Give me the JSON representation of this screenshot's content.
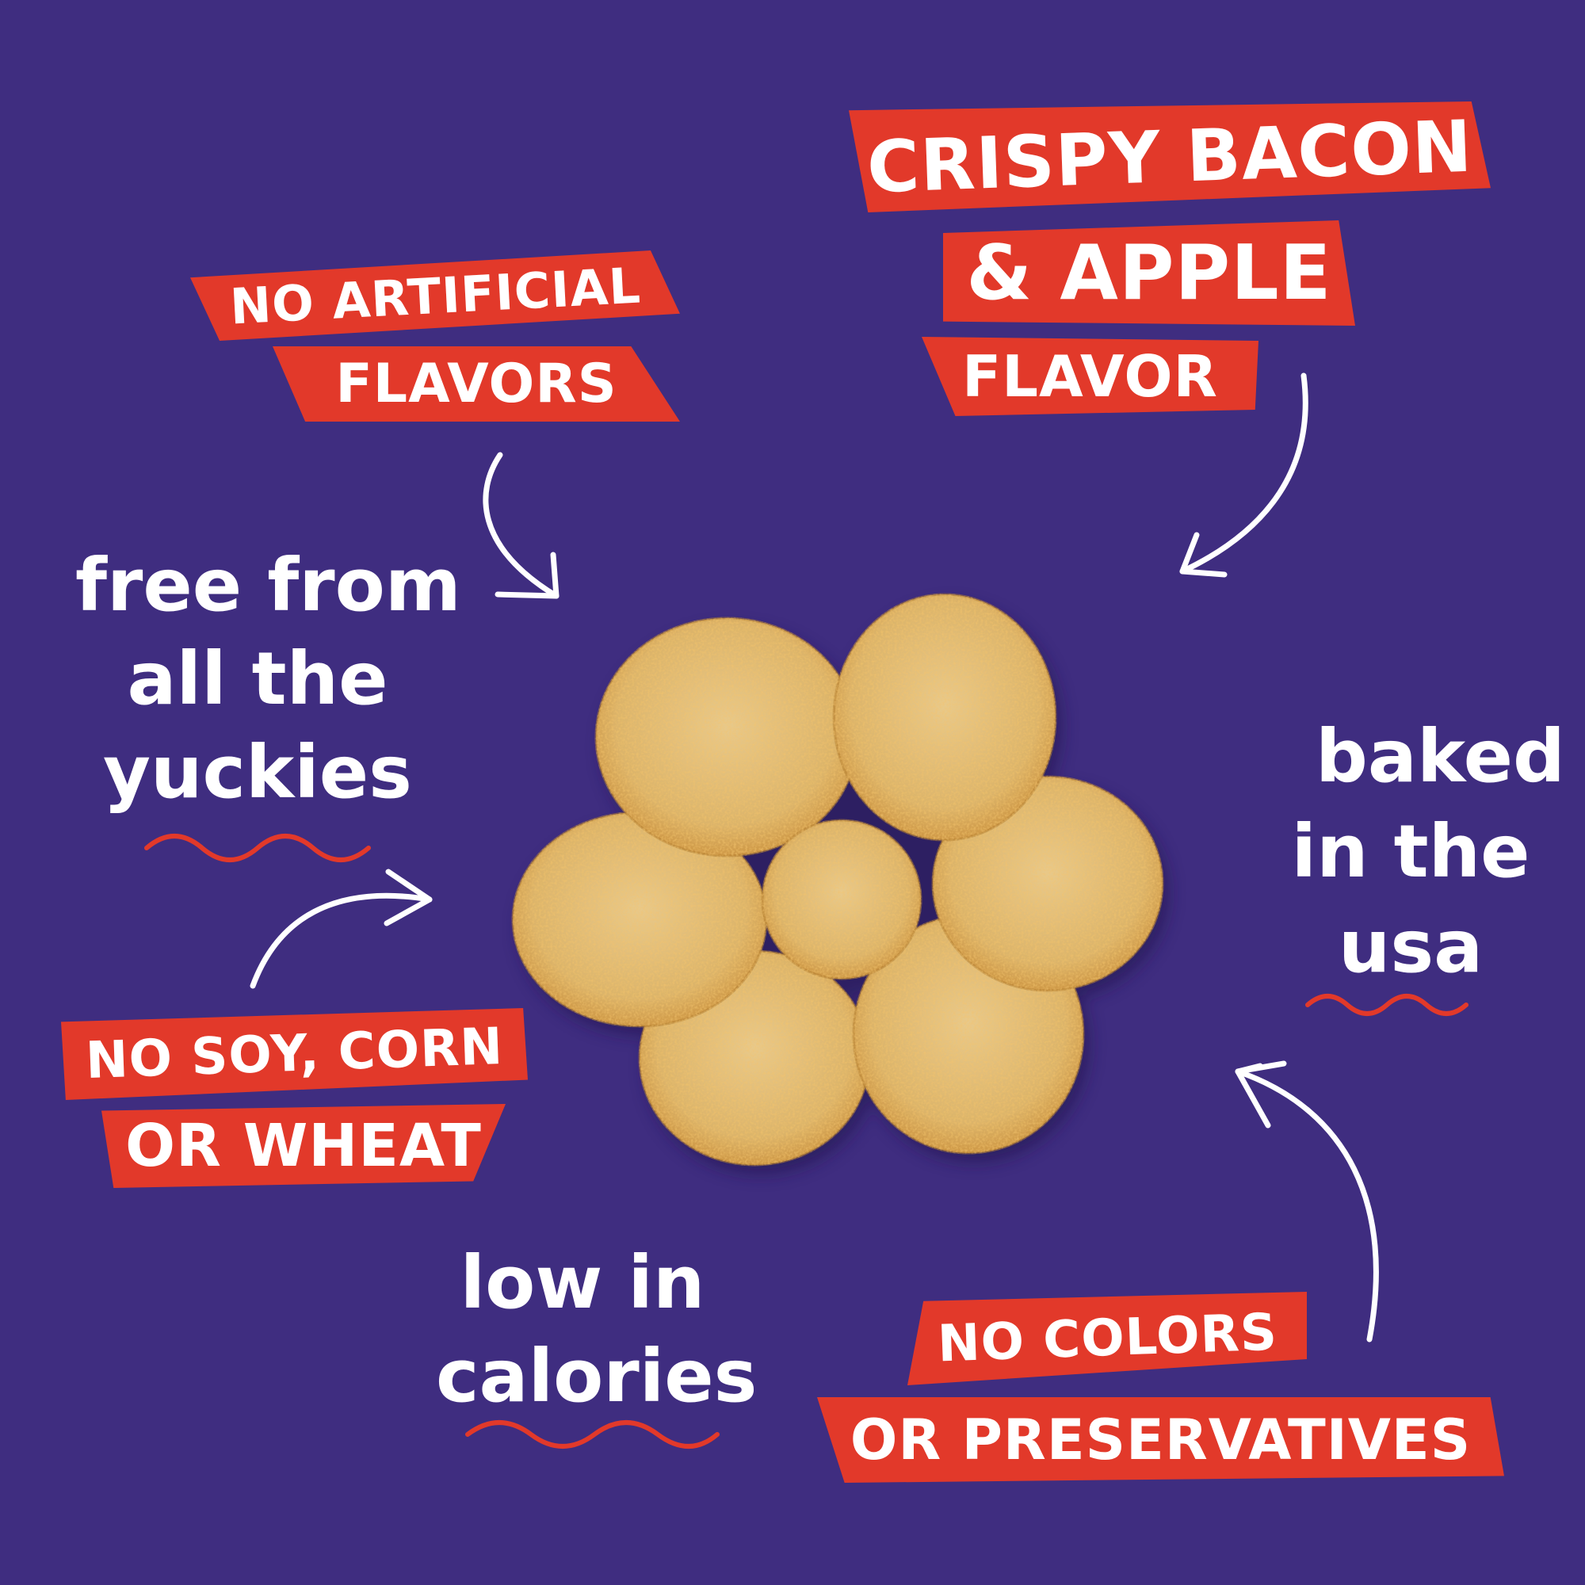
{
  "colors": {
    "background": "#3f2d80",
    "banner": "#e2392a",
    "text": "#ffffff"
  },
  "flavor": {
    "line1": "CRISPY BACON",
    "line2": "& APPLE",
    "line3": "FLAVOR"
  },
  "no_artificial": {
    "line1": "NO ARTIFICIAL",
    "line2": "FLAVORS"
  },
  "no_soy": {
    "line1": "NO SOY, CORN",
    "line2": "OR WHEAT"
  },
  "no_colors": {
    "line1": "NO COLORS",
    "line2": "OR PRESERVATIVES"
  },
  "free_from": {
    "line1": "free from",
    "line2": "all the",
    "line3": "yuckies"
  },
  "baked": {
    "line1": "baked",
    "line2": "in the",
    "line3": "usa"
  },
  "low_cal": {
    "line1": "low in",
    "line2": "calories"
  },
  "product_image": "flower-shaped-dog-treat"
}
